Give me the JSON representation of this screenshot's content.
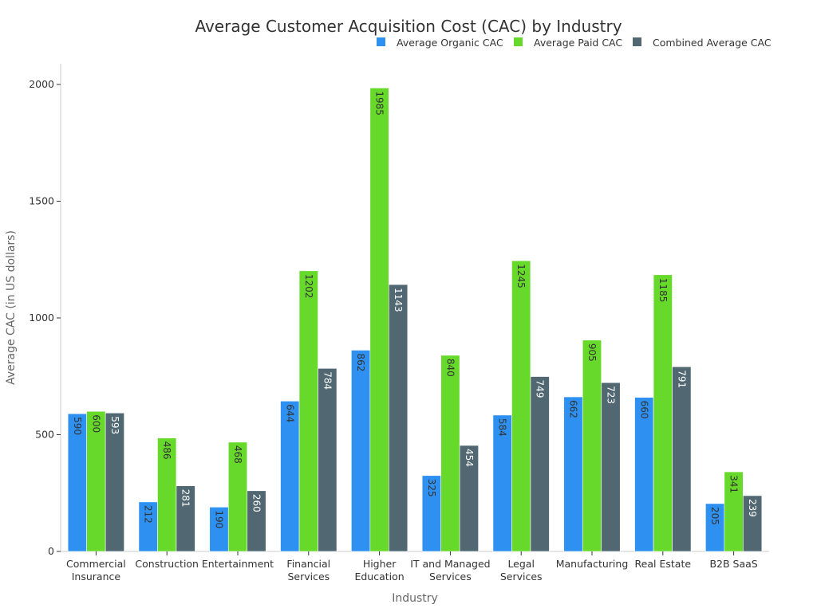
{
  "chart_data": {
    "type": "bar",
    "title": "Average Customer Acquisition Cost (CAC) by Industry",
    "xlabel": "Industry",
    "ylabel": "Average CAC (in US dollars)",
    "ylim": [
      0,
      2100
    ],
    "yticks": [
      0,
      500,
      1000,
      1500,
      2000
    ],
    "legend_position": "top-right",
    "categories": [
      [
        "Commercial",
        "Insurance"
      ],
      [
        "Construction"
      ],
      [
        "Entertainment"
      ],
      [
        "Financial",
        "Services"
      ],
      [
        "Higher",
        "Education"
      ],
      [
        "IT and Managed",
        "Services"
      ],
      [
        "Legal",
        "Services"
      ],
      [
        "Manufacturing"
      ],
      [
        "Real Estate"
      ],
      [
        "B2B SaaS"
      ]
    ],
    "series": [
      {
        "name": "Average Organic CAC",
        "color": "#2e90f0",
        "label_color": "#333333",
        "values": [
          590,
          212,
          190,
          644,
          862,
          325,
          584,
          662,
          660,
          205
        ]
      },
      {
        "name": "Average Paid CAC",
        "color": "#66d92a",
        "label_color": "#333333",
        "values": [
          600,
          486,
          468,
          1202,
          1985,
          840,
          1245,
          905,
          1185,
          341
        ]
      },
      {
        "name": "Combined Average CAC",
        "color": "#516872",
        "label_color": "#ffffff",
        "values": [
          593,
          281,
          260,
          784,
          1143,
          454,
          749,
          723,
          791,
          239
        ]
      }
    ]
  }
}
